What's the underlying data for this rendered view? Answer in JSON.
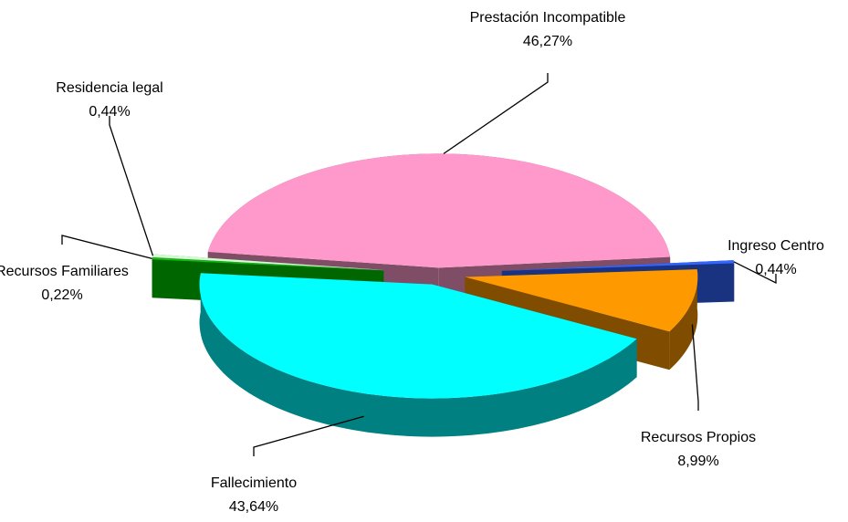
{
  "chart_data": {
    "type": "pie3d",
    "categories": [
      "Prestación Incompatible",
      "Ingreso Centro",
      "Recursos Propios",
      "Fallecimiento",
      "Recursos Familiares",
      "Residencia legal"
    ],
    "values": [
      46.27,
      0.44,
      8.99,
      43.64,
      0.22,
      0.44
    ],
    "value_labels": [
      "46,27%",
      "0,44%",
      "8,99%",
      "43,64%",
      "0,22%",
      "0,44%"
    ],
    "colors": [
      "#ff99cc",
      "#3366ff",
      "#ff9900",
      "#00ffff",
      "#00cc00",
      "#ccffcc"
    ]
  }
}
